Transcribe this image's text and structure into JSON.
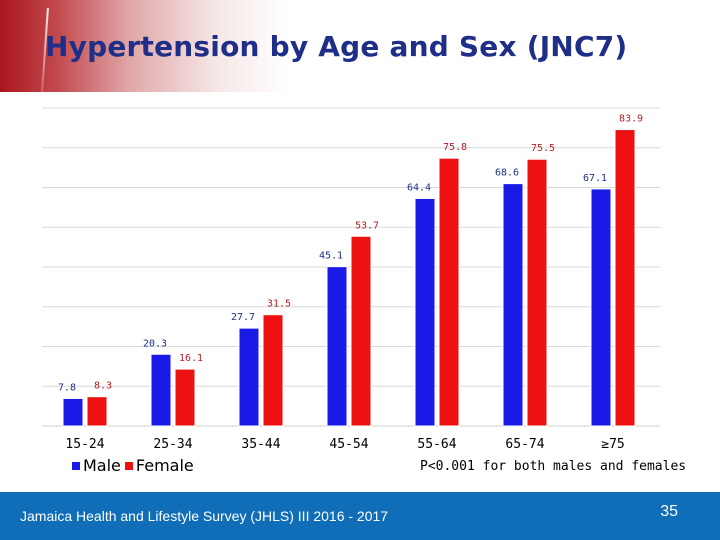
{
  "slide": {
    "title": "Hypertension by Age and Sex (JNC7)",
    "footer": "Jamaica Health and Lifestyle Survey (JHLS) III 2016 - 2017",
    "slide_number": "35",
    "note": "P<0.001 for both males and females",
    "colors": {
      "male": "#1a1ae6",
      "female": "#ee1111",
      "male_label": "#1f2f87",
      "female_label": "#b52025",
      "footer_bg": "#0f6eb7",
      "header_red": "#a9171d"
    }
  },
  "chart_data": {
    "type": "bar",
    "title": "Hypertension by Age and Sex (JNC7)",
    "xlabel": "",
    "ylabel": "",
    "ylim": [
      0,
      90
    ],
    "grid": true,
    "legend": "bottom-left",
    "categories": [
      "15-24",
      "25-34",
      "35-44",
      "45-54",
      "55-64",
      "65-74",
      "≥75"
    ],
    "series": [
      {
        "name": "Male",
        "values": [
          7.8,
          20.3,
          27.7,
          45.1,
          64.4,
          68.6,
          67.1
        ]
      },
      {
        "name": "Female",
        "values": [
          8.3,
          16.1,
          31.5,
          53.7,
          75.8,
          75.5,
          83.9
        ]
      }
    ]
  }
}
